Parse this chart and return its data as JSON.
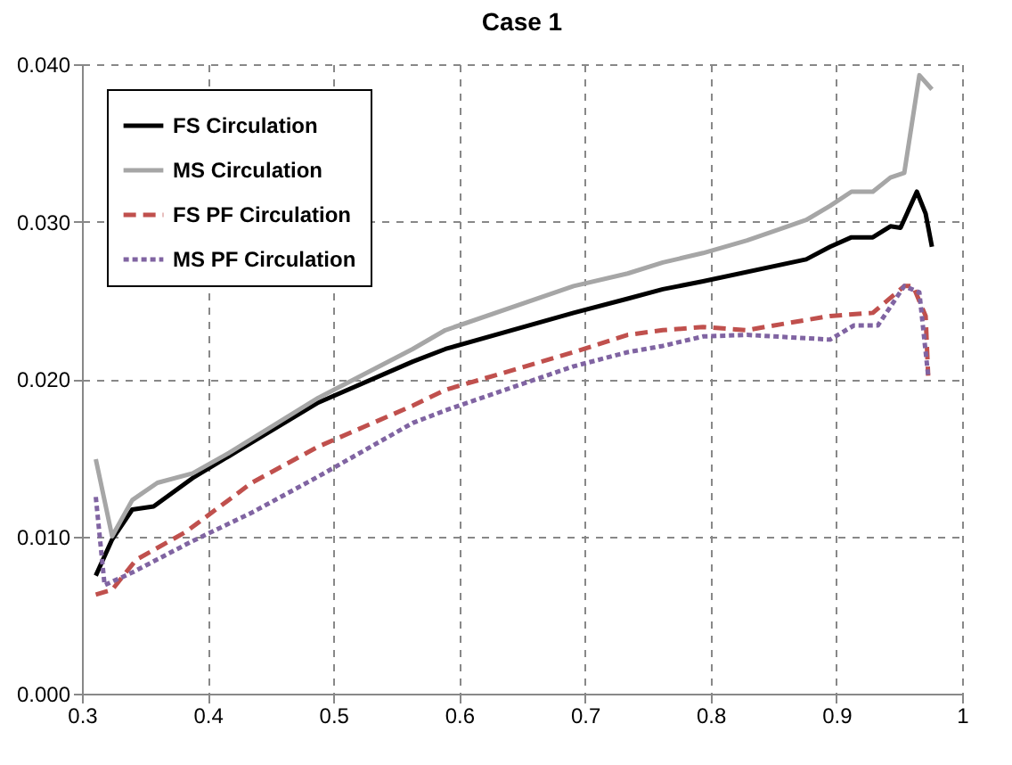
{
  "chart_data": {
    "type": "line",
    "title": "Case 1",
    "xlim": [
      0.3,
      1
    ],
    "ylim": [
      0,
      0.04
    ],
    "xticks": [
      0.3,
      0.4,
      0.5,
      0.6,
      0.7,
      0.8,
      0.9,
      1
    ],
    "yticks": [
      {
        "value": 0,
        "label": "0.000"
      },
      {
        "value": 0.01,
        "label": "0.010"
      },
      {
        "value": 0.02,
        "label": "0.020"
      },
      {
        "value": 0.03,
        "label": "0.030"
      },
      {
        "value": 0.04,
        "label": "0.040"
      }
    ],
    "grid": true,
    "legend": "top left",
    "marker": "none",
    "series": [
      {
        "name": "FS Circulation",
        "color": "#000000",
        "line_style": "solid",
        "x": [
          0.311,
          0.324,
          0.34,
          0.357,
          0.388,
          0.417,
          0.488,
          0.563,
          0.589,
          0.691,
          0.734,
          0.762,
          0.794,
          0.876,
          0.895,
          0.912,
          0.929,
          0.943,
          0.951,
          0.964,
          0.971,
          0.976
        ],
        "values": [
          0.0075,
          0.0098,
          0.0117,
          0.0119,
          0.0137,
          0.0151,
          0.0185,
          0.0211,
          0.0219,
          0.0242,
          0.0251,
          0.0257,
          0.0262,
          0.0276,
          0.0284,
          0.029,
          0.029,
          0.0297,
          0.0296,
          0.0319,
          0.0305,
          0.0284
        ]
      },
      {
        "name": "MS Circulation",
        "color": "#a6a6a6",
        "line_style": "solid",
        "x": [
          0.311,
          0.324,
          0.34,
          0.36,
          0.388,
          0.417,
          0.488,
          0.563,
          0.589,
          0.691,
          0.734,
          0.762,
          0.794,
          0.829,
          0.876,
          0.895,
          0.912,
          0.929,
          0.943,
          0.954,
          0.966,
          0.976
        ],
        "values": [
          0.0149,
          0.01,
          0.0123,
          0.0134,
          0.014,
          0.0153,
          0.0188,
          0.0219,
          0.0231,
          0.0259,
          0.0267,
          0.0274,
          0.028,
          0.0288,
          0.0301,
          0.031,
          0.0319,
          0.0319,
          0.0328,
          0.0331,
          0.0393,
          0.0384
        ]
      },
      {
        "name": "FS PF Circulation",
        "color": "#c0504d",
        "line_style": "dashed",
        "x": [
          0.311,
          0.324,
          0.343,
          0.383,
          0.435,
          0.488,
          0.563,
          0.589,
          0.691,
          0.734,
          0.762,
          0.794,
          0.829,
          0.843,
          0.895,
          0.929,
          0.954,
          0.961,
          0.971,
          0.973
        ],
        "values": [
          0.0063,
          0.0066,
          0.0085,
          0.0103,
          0.0134,
          0.0157,
          0.0183,
          0.0193,
          0.0217,
          0.0228,
          0.0231,
          0.0233,
          0.0231,
          0.0233,
          0.024,
          0.0242,
          0.0259,
          0.0259,
          0.024,
          0.0202
        ]
      },
      {
        "name": "MS PF Circulation",
        "color": "#8064a2",
        "line_style": "dotted",
        "x": [
          0.311,
          0.318,
          0.34,
          0.388,
          0.435,
          0.488,
          0.563,
          0.589,
          0.691,
          0.734,
          0.762,
          0.794,
          0.829,
          0.895,
          0.914,
          0.933,
          0.954,
          0.966,
          0.973
        ],
        "values": [
          0.0125,
          0.0069,
          0.0077,
          0.0097,
          0.0115,
          0.0138,
          0.0172,
          0.018,
          0.0208,
          0.0217,
          0.0221,
          0.0227,
          0.0228,
          0.0225,
          0.0234,
          0.0234,
          0.0259,
          0.0255,
          0.0202
        ]
      }
    ]
  }
}
